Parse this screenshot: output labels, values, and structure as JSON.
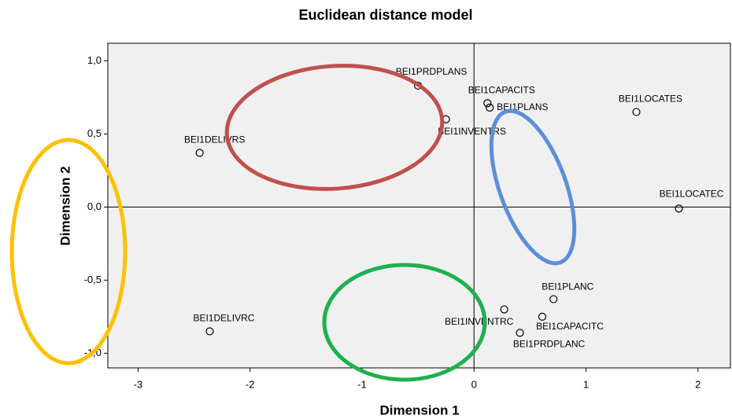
{
  "chart_data": {
    "type": "scatter",
    "title": "Euclidean distance model",
    "x_label": "Dimension 1",
    "y_label": "Dimension 2",
    "labels": [
      "BEI1PRDPLANS",
      "BEI1CAPACITS",
      "BEI1PLANS",
      "BEI1INVENTRS",
      "BEI1LOCATES",
      "BEI1DELIVRS",
      "BEI1LOCATEC",
      "BEI1PLANC",
      "BEI1INVENTRC",
      "BEI1CAPACITC",
      "BEI1PRDPLANC",
      "BEI1DELIVRC"
    ],
    "x": [
      -0.5,
      0.12,
      0.14,
      -0.25,
      1.45,
      -2.45,
      1.83,
      0.71,
      0.27,
      0.61,
      0.41,
      -2.36
    ],
    "values": [
      0.83,
      0.71,
      0.68,
      0.6,
      0.65,
      0.37,
      -0.01,
      -0.63,
      -0.7,
      -0.75,
      -0.86,
      -0.85
    ],
    "xlim": [
      -3.27,
      2.29
    ],
    "ylim": [
      -1.1,
      1.12
    ],
    "xticks": [
      -3,
      -2,
      -1,
      0,
      1,
      2
    ],
    "yticks": [
      {
        "value": -1.0,
        "label": "-1,0"
      },
      {
        "value": -0.5,
        "label": "-0,5"
      },
      {
        "value": 0.0,
        "label": "0,0"
      },
      {
        "value": 0.5,
        "label": "0,5"
      },
      {
        "value": 1.0,
        "label": "1,0"
      }
    ],
    "reference_lines": {
      "x": 0,
      "y": 0
    },
    "marker_color": "#000000",
    "background": "#f0f0f0"
  }
}
